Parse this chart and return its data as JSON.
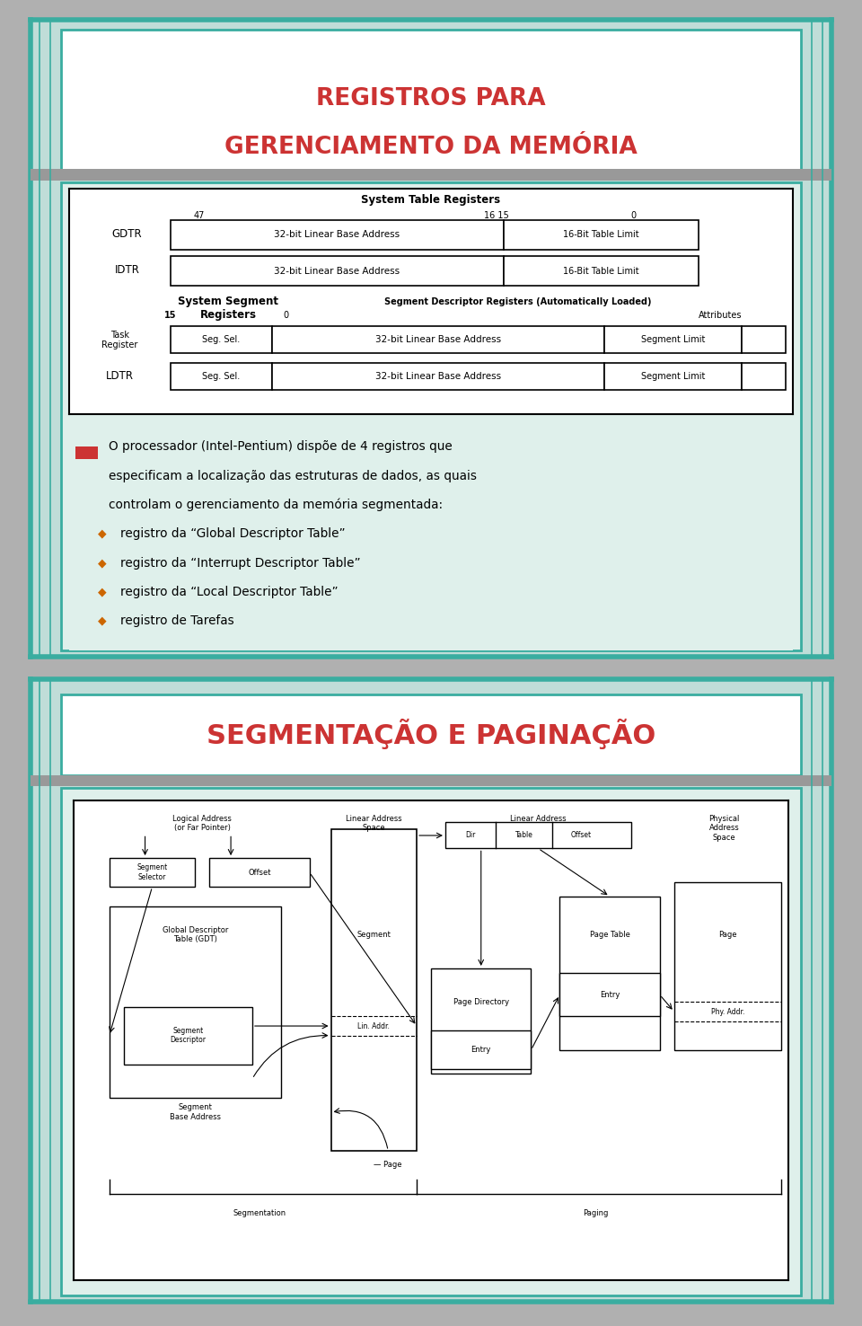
{
  "slide1_title_line1": "REGISTROS PARA",
  "slide1_title_line2": "GERENCIAMENTO DA MEMÓRIA",
  "slide1_title_color": "#cc3333",
  "slide1_bg_outer": "#c0ddd8",
  "slide1_bg_inner": "#dff0eb",
  "slide1_border_outer": "#3aada0",
  "slide2_title": "SEGMENTAÇÃO E PAGINAÇÃO",
  "slide2_title_color": "#cc3333",
  "slide2_bg_outer": "#c0ddd8",
  "slide2_bg_inner": "#dff0eb",
  "slide2_border_outer": "#3aada0",
  "page_bg": "#b0b0b0",
  "body_text_line1": "O processador (Intel-Pentium) dispõe de 4 registros que",
  "body_text_line2": "especificam a localização das estruturas de dados, as quais",
  "body_text_line3": "controlam o gerenciamento da memória segmentada:",
  "bullet_items": [
    "registro da “Global Descriptor Table”",
    "registro da “Interrupt Descriptor Table”",
    "registro da “Local Descriptor Table”",
    "registro de Tarefas"
  ],
  "bullet_color": "#cc6600",
  "text_color": "#000000",
  "stripe_color": "#3aada0",
  "gray_bar": "#999999",
  "white": "#ffffff",
  "black": "#000000"
}
